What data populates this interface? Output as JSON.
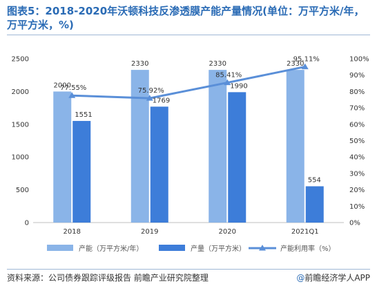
{
  "header": {
    "title": "图表5：2018-2020年沃顿科技反渗透膜产能产量情况(单位：万平方米/年，万平方米，%)"
  },
  "footer": {
    "source": "资料来源：公司债券跟踪评级报告 前瞻产业研究院整理",
    "brand_icon": "@",
    "brand": "前瞻经济学人APP"
  },
  "colors": {
    "capacity": "#8ab4e8",
    "output": "#3d7dd9",
    "rate": "#5a8fd8"
  },
  "chart_data": {
    "type": "bar",
    "categories": [
      "2018",
      "2019",
      "2020",
      "2021Q1"
    ],
    "series": [
      {
        "name": "产能（万平方米/年）",
        "kind": "bar",
        "axis": "left",
        "values": [
          2000,
          2330,
          2330,
          2330
        ],
        "labels": [
          "2000",
          "2330",
          "2330",
          "2330"
        ]
      },
      {
        "name": "产量（万平方米）",
        "kind": "bar",
        "axis": "left",
        "values": [
          1551,
          1769,
          1990,
          554
        ],
        "labels": [
          "1551",
          "1769",
          "1990",
          "554"
        ]
      },
      {
        "name": "产能利用率（%）",
        "kind": "line",
        "axis": "right",
        "values": [
          77.55,
          75.92,
          85.41,
          95.11
        ],
        "labels": [
          "77.55%",
          "75.92%",
          "85.41%",
          "95.11%"
        ]
      }
    ],
    "y_left": {
      "range": [
        0,
        2500
      ],
      "ticks": [
        "0",
        "500",
        "1000",
        "1500",
        "2000",
        "2500"
      ]
    },
    "y_right": {
      "range": [
        0,
        100
      ],
      "ticks": [
        "0%",
        "10%",
        "20%",
        "30%",
        "40%",
        "50%",
        "60%",
        "70%",
        "80%",
        "90%",
        "100%"
      ]
    },
    "grid": false,
    "legend": "bottom"
  }
}
